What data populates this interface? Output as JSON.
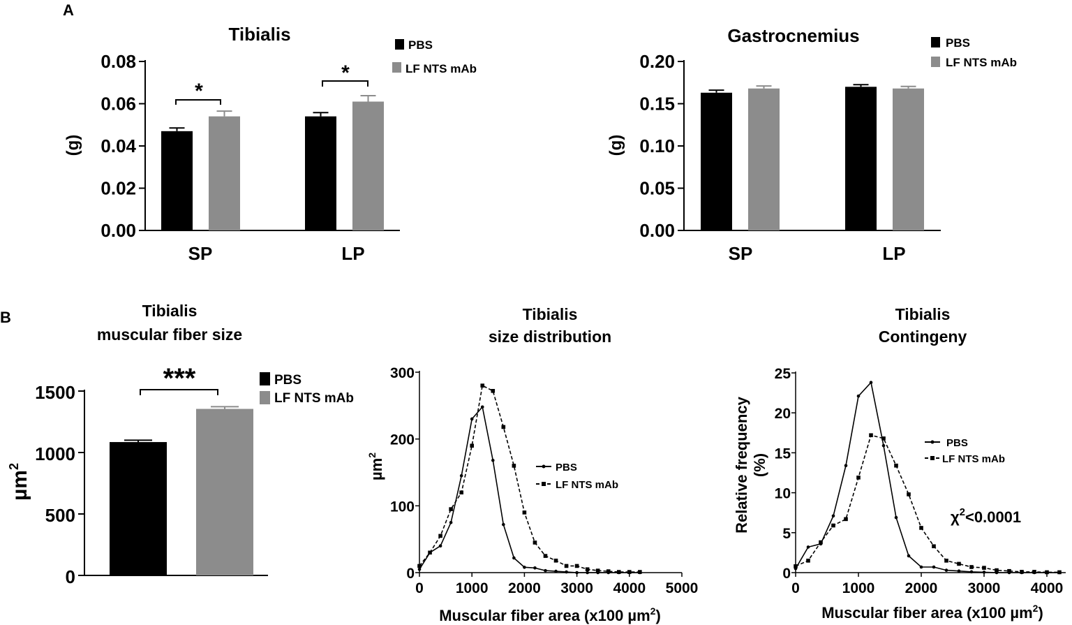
{
  "figure": {
    "panel_a_letter": "A",
    "panel_b_letter": "B"
  },
  "colors": {
    "pbs": "#000000",
    "lf": "#8c8c8c"
  },
  "chart_data": [
    {
      "id": "tibialis_mass",
      "type": "bar",
      "title": "Tibialis",
      "categories": [
        "SP",
        "LP"
      ],
      "ylabel": "(g)",
      "ylim": [
        0,
        0.08
      ],
      "yticks": [
        0,
        0.02,
        0.04,
        0.06,
        0.08
      ],
      "ytick_labels": [
        "0.00",
        "0.02",
        "0.04",
        "0.06",
        "0.08"
      ],
      "legend": [
        "PBS",
        "LF NTS mAb"
      ],
      "series": [
        {
          "name": "PBS",
          "values": [
            0.047,
            0.054
          ],
          "errors": [
            0.0015,
            0.0018
          ]
        },
        {
          "name": "LF NTS mAb",
          "values": [
            0.054,
            0.061
          ],
          "errors": [
            0.0025,
            0.0028
          ]
        }
      ],
      "significance": [
        {
          "category": "SP",
          "label": "*"
        },
        {
          "category": "LP",
          "label": "*"
        }
      ]
    },
    {
      "id": "gastrocnemius_mass",
      "type": "bar",
      "title": "Gastrocnemius",
      "categories": [
        "SP",
        "LP"
      ],
      "ylabel": "(g)",
      "ylim": [
        0,
        0.2
      ],
      "yticks": [
        0,
        0.05,
        0.1,
        0.15,
        0.2
      ],
      "ytick_labels": [
        "0.00",
        "0.05",
        "0.10",
        "0.15",
        "0.20"
      ],
      "legend": [
        "PBS",
        "LF NTS mAb"
      ],
      "series": [
        {
          "name": "PBS",
          "values": [
            0.163,
            0.17
          ],
          "errors": [
            0.003,
            0.0025
          ]
        },
        {
          "name": "LF NTS mAb",
          "values": [
            0.168,
            0.168
          ],
          "errors": [
            0.003,
            0.0025
          ]
        }
      ]
    },
    {
      "id": "fiber_size",
      "type": "bar",
      "title_line1": "Tibialis",
      "title_line2": "muscular fiber size",
      "categories": [
        "PBS",
        "LF NTS mAb"
      ],
      "ylabel": "µm",
      "ylabel_sup": "2",
      "ylim": [
        0,
        1500
      ],
      "yticks": [
        0,
        500,
        1000,
        1500
      ],
      "ytick_labels": [
        "0",
        "500",
        "1000",
        "1500"
      ],
      "legend": [
        "PBS",
        "LF NTS mAb"
      ],
      "values": [
        1085,
        1355
      ],
      "errors": [
        15,
        18
      ],
      "significance": "***"
    },
    {
      "id": "size_distribution",
      "type": "line",
      "title_line1": "Tibialis",
      "title_line2": "size distribution",
      "xlabel": "Muscular fiber area (x100 µm",
      "xlabel_sup": "2",
      "xlabel_end": ")",
      "ylabel": "µm",
      "ylabel_sup": "2",
      "xlim": [
        0,
        5000
      ],
      "ylim": [
        0,
        300
      ],
      "xticks": [
        0,
        1000,
        2000,
        3000,
        4000,
        5000
      ],
      "xtick_labels": [
        "0",
        "1000",
        "2000",
        "3000",
        "4000",
        "5000"
      ],
      "yticks": [
        0,
        100,
        200,
        300
      ],
      "ytick_labels": [
        "0",
        "100",
        "200",
        "300"
      ],
      "legend": [
        "PBS",
        "LF NTS mAb"
      ],
      "x": [
        0,
        200,
        400,
        600,
        800,
        1000,
        1200,
        1400,
        1600,
        1800,
        2000,
        2200,
        2400,
        2600,
        2800,
        3000,
        3200,
        3400,
        3600,
        3800,
        4000,
        4200
      ],
      "series": [
        {
          "name": "PBS",
          "style": "solid",
          "values": [
            5,
            30,
            40,
            75,
            145,
            230,
            248,
            168,
            72,
            22,
            8,
            7,
            3,
            2,
            1,
            0,
            0,
            0,
            0,
            0,
            0,
            0
          ]
        },
        {
          "name": "LF NTS mAb",
          "style": "dashed",
          "values": [
            10,
            30,
            55,
            95,
            120,
            190,
            280,
            272,
            218,
            160,
            90,
            45,
            25,
            18,
            10,
            10,
            5,
            3,
            2,
            1,
            1,
            1
          ]
        }
      ]
    },
    {
      "id": "contingency",
      "type": "line",
      "title_line1": "Tibialis",
      "title_line2": "Contingeny",
      "xlabel": "Muscular fiber area (x100 µm",
      "xlabel_sup": "2",
      "xlabel_end": ")",
      "ylabel_line1": "Relative frequency",
      "ylabel_line2": "(%)",
      "xlim": [
        0,
        4300
      ],
      "ylim": [
        0,
        25
      ],
      "xticks": [
        0,
        1000,
        2000,
        3000,
        4000
      ],
      "xtick_labels": [
        "0",
        "1000",
        "2000",
        "3000",
        "4000"
      ],
      "yticks": [
        0,
        5,
        10,
        15,
        20,
        25
      ],
      "ytick_labels": [
        "0",
        "5",
        "10",
        "15",
        "20",
        "25"
      ],
      "legend": [
        "PBS",
        "LF NTS mAb"
      ],
      "annotation_symbol": "χ",
      "annotation_sup": "2",
      "annotation_rest": "<0.0001",
      "x": [
        0,
        200,
        400,
        600,
        800,
        1000,
        1200,
        1400,
        1600,
        1800,
        2000,
        2200,
        2400,
        2600,
        2800,
        3000,
        3200,
        3400,
        3600,
        3800,
        4000,
        4200
      ],
      "series": [
        {
          "name": "PBS",
          "style": "solid",
          "values": [
            0.5,
            3.2,
            3.6,
            7.1,
            13.4,
            22.1,
            23.8,
            15.9,
            6.9,
            2.1,
            0.7,
            0.7,
            0.3,
            0.2,
            0.1,
            0.05,
            0,
            0,
            0,
            0,
            0,
            0
          ]
        },
        {
          "name": "LF NTS mAb",
          "style": "dashed",
          "values": [
            0.8,
            1.5,
            3.8,
            5.9,
            6.7,
            11.9,
            17.2,
            16.8,
            13.4,
            9.8,
            5.6,
            3.3,
            1.5,
            1.1,
            0.7,
            0.6,
            0.3,
            0.2,
            0.1,
            0.1,
            0.05,
            0.05
          ]
        }
      ]
    }
  ]
}
